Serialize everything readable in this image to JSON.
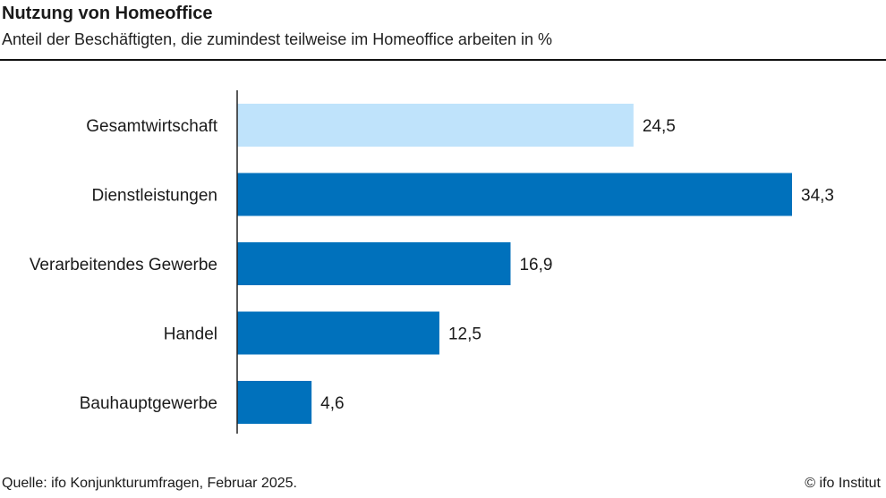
{
  "chart_data": {
    "type": "bar",
    "orientation": "horizontal",
    "title": "Nutzung von Homeoffice",
    "subtitle": "Anteil der Beschäftigten, die zumindest teilweise im Homeoffice arbeiten in %",
    "categories": [
      "Gesamtwirtschaft",
      "Dienstleistungen",
      "Verarbeitendes Gewerbe",
      "Handel",
      "Bauhauptgewerbe"
    ],
    "values": [
      24.5,
      34.3,
      16.9,
      12.5,
      4.6
    ],
    "value_labels": [
      "24,5",
      "34,3",
      "16,9",
      "12,5",
      "4,6"
    ],
    "highlight_index": 0,
    "colors": {
      "highlight": "#bfe3fb",
      "default": "#0071bc",
      "axis": "#222222"
    },
    "xlim": [
      0,
      35
    ]
  },
  "footer": {
    "source": "Quelle: ifo Konjunkturumfragen, Februar 2025.",
    "copyright": "© ifo Institut"
  }
}
